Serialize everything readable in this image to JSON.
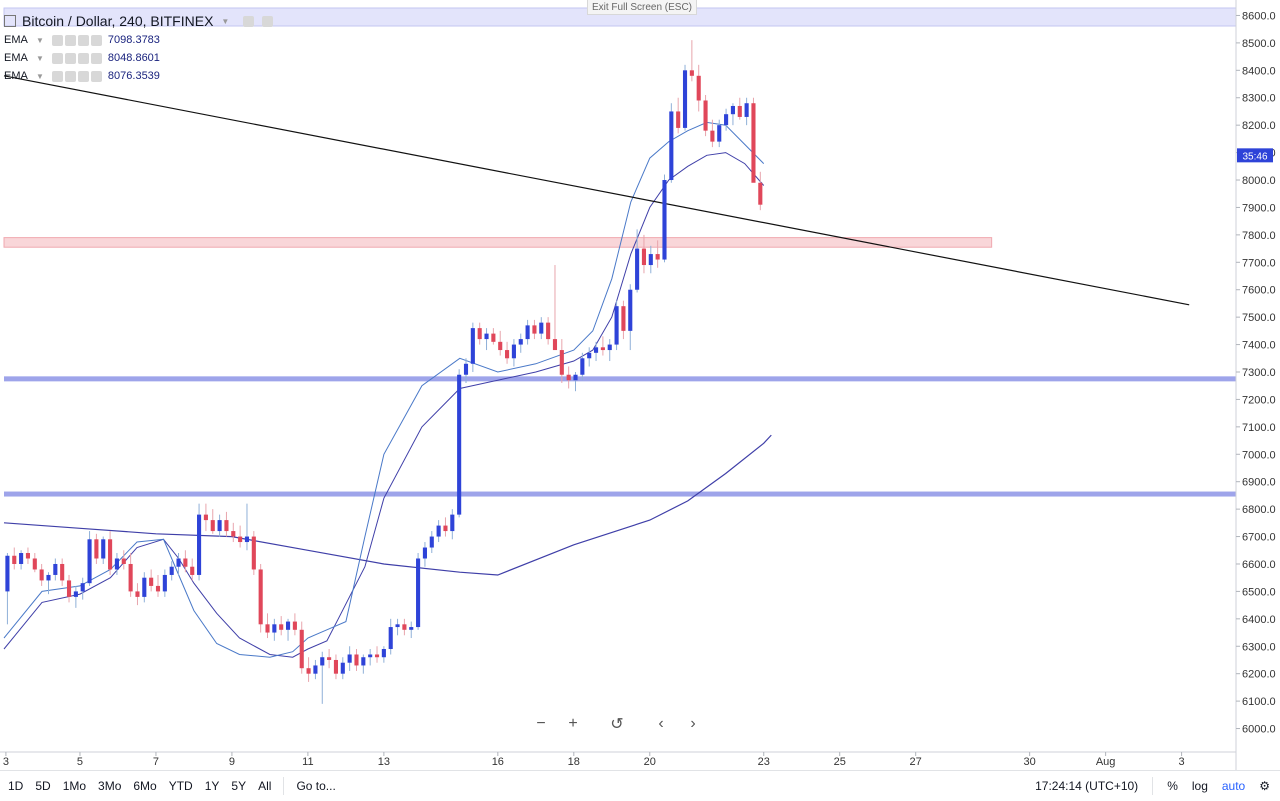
{
  "window": {
    "exit_fullscreen": "Exit Full Screen (ESC)"
  },
  "legend": {
    "title": "Bitcoin / Dollar, 240, BITFINEX",
    "indicators": [
      {
        "name": "EMA",
        "value": "7098.3783"
      },
      {
        "name": "EMA",
        "value": "8048.8601"
      },
      {
        "name": "EMA",
        "value": "8076.3539"
      }
    ]
  },
  "nav": {
    "zoom_out": "−",
    "zoom_in": "+",
    "reset": "↺",
    "scroll_left": "‹",
    "scroll_right": "›"
  },
  "bottom_bar": {
    "ranges": [
      "1D",
      "5D",
      "1Mo",
      "3Mo",
      "6Mo",
      "YTD",
      "1Y",
      "5Y",
      "All"
    ],
    "goto": "Go to...",
    "time": "17:24:14 (UTC+10)",
    "percent": "%",
    "log": "log",
    "auto": "auto"
  },
  "colors": {
    "up": "#2e43d8",
    "down": "#e0475a",
    "hline": "#9ea4ea",
    "zone": "#f9d6d9",
    "ema_fast": "#4a79c8",
    "ema_slow": "#3f3fa8",
    "trendline": "#111111",
    "badge": "#2e43d8"
  },
  "chart_data": {
    "type": "candlestick",
    "title": "Bitcoin / Dollar, 240, BITFINEX",
    "ylim": [
      5950,
      8650
    ],
    "y_ticks": [
      6000,
      6100,
      6200,
      6300,
      6400,
      6500,
      6600,
      6700,
      6800,
      6900,
      7000,
      7100,
      7200,
      7300,
      7400,
      7500,
      7600,
      7700,
      7800,
      7900,
      8000,
      8100,
      8200,
      8300,
      8400,
      8500,
      8600
    ],
    "x_ticks": [
      {
        "label": "3",
        "t": 0.5
      },
      {
        "label": "5",
        "t": 20
      },
      {
        "label": "7",
        "t": 40
      },
      {
        "label": "9",
        "t": 60
      },
      {
        "label": "11",
        "t": 80
      },
      {
        "label": "13",
        "t": 100
      },
      {
        "label": "16",
        "t": 130
      },
      {
        "label": "18",
        "t": 150
      },
      {
        "label": "20",
        "t": 170
      },
      {
        "label": "23",
        "t": 200
      },
      {
        "label": "25",
        "t": 220
      },
      {
        "label": "27",
        "t": 240
      },
      {
        "label": "30",
        "t": 270
      },
      {
        "label": "Aug",
        "t": 290
      },
      {
        "label": "3",
        "t": 310
      }
    ],
    "x_range": [
      0,
      312
    ],
    "current_price_badge": {
      "label": "35:46",
      "price": 8090
    },
    "horizontal_lines": [
      7275,
      6855
    ],
    "resistance_zone": {
      "from": 7755,
      "to": 7790,
      "t_end": 260
    },
    "trendline": [
      {
        "t": 0,
        "price": 8380
      },
      {
        "t": 312,
        "price": 7545
      }
    ],
    "candles": [
      [
        6500,
        6640,
        6380,
        6630
      ],
      [
        6630,
        6660,
        6580,
        6600
      ],
      [
        6600,
        6650,
        6580,
        6640
      ],
      [
        6640,
        6660,
        6600,
        6620
      ],
      [
        6620,
        6640,
        6570,
        6580
      ],
      [
        6580,
        6600,
        6520,
        6540
      ],
      [
        6540,
        6570,
        6490,
        6560
      ],
      [
        6560,
        6620,
        6540,
        6600
      ],
      [
        6600,
        6620,
        6520,
        6540
      ],
      [
        6540,
        6560,
        6460,
        6480
      ],
      [
        6480,
        6520,
        6440,
        6500
      ],
      [
        6500,
        6550,
        6470,
        6530
      ],
      [
        6530,
        6720,
        6520,
        6690
      ],
      [
        6690,
        6710,
        6600,
        6620
      ],
      [
        6620,
        6700,
        6600,
        6690
      ],
      [
        6690,
        6720,
        6560,
        6580
      ],
      [
        6580,
        6640,
        6560,
        6620
      ],
      [
        6620,
        6650,
        6580,
        6600
      ],
      [
        6600,
        6640,
        6480,
        6500
      ],
      [
        6500,
        6530,
        6450,
        6480
      ],
      [
        6480,
        6570,
        6460,
        6550
      ],
      [
        6550,
        6580,
        6500,
        6520
      ],
      [
        6520,
        6560,
        6480,
        6500
      ],
      [
        6500,
        6580,
        6480,
        6560
      ],
      [
        6560,
        6610,
        6540,
        6590
      ],
      [
        6590,
        6640,
        6560,
        6620
      ],
      [
        6620,
        6650,
        6570,
        6590
      ],
      [
        6590,
        6620,
        6540,
        6560
      ],
      [
        6560,
        6820,
        6540,
        6780
      ],
      [
        6780,
        6820,
        6720,
        6760
      ],
      [
        6760,
        6800,
        6710,
        6720
      ],
      [
        6720,
        6780,
        6700,
        6760
      ],
      [
        6760,
        6790,
        6700,
        6720
      ],
      [
        6720,
        6750,
        6680,
        6700
      ],
      [
        6700,
        6740,
        6660,
        6680
      ],
      [
        6680,
        6820,
        6650,
        6700
      ],
      [
        6700,
        6720,
        6560,
        6580
      ],
      [
        6580,
        6600,
        6350,
        6380
      ],
      [
        6380,
        6420,
        6330,
        6350
      ],
      [
        6350,
        6400,
        6320,
        6380
      ],
      [
        6380,
        6410,
        6340,
        6360
      ],
      [
        6360,
        6400,
        6320,
        6390
      ],
      [
        6390,
        6420,
        6340,
        6360
      ],
      [
        6360,
        6390,
        6200,
        6220
      ],
      [
        6220,
        6260,
        6170,
        6200
      ],
      [
        6200,
        6250,
        6180,
        6230
      ],
      [
        6230,
        6280,
        6090,
        6260
      ],
      [
        6260,
        6290,
        6220,
        6250
      ],
      [
        6250,
        6270,
        6180,
        6200
      ],
      [
        6200,
        6260,
        6180,
        6240
      ],
      [
        6240,
        6300,
        6210,
        6270
      ],
      [
        6270,
        6290,
        6210,
        6230
      ],
      [
        6230,
        6270,
        6200,
        6260
      ],
      [
        6260,
        6290,
        6230,
        6270
      ],
      [
        6270,
        6300,
        6240,
        6260
      ],
      [
        6260,
        6300,
        6240,
        6290
      ],
      [
        6290,
        6400,
        6270,
        6370
      ],
      [
        6370,
        6400,
        6340,
        6380
      ],
      [
        6380,
        6400,
        6340,
        6360
      ],
      [
        6360,
        6390,
        6330,
        6370
      ],
      [
        6370,
        6640,
        6360,
        6620
      ],
      [
        6620,
        6680,
        6590,
        6660
      ],
      [
        6660,
        6720,
        6640,
        6700
      ],
      [
        6700,
        6760,
        6680,
        6740
      ],
      [
        6740,
        6770,
        6700,
        6720
      ],
      [
        6720,
        6800,
        6690,
        6780
      ],
      [
        6780,
        7310,
        6770,
        7290
      ],
      [
        7290,
        7350,
        7260,
        7330
      ],
      [
        7330,
        7480,
        7300,
        7460
      ],
      [
        7460,
        7480,
        7400,
        7420
      ],
      [
        7420,
        7460,
        7380,
        7440
      ],
      [
        7440,
        7460,
        7400,
        7410
      ],
      [
        7410,
        7450,
        7360,
        7380
      ],
      [
        7380,
        7410,
        7330,
        7350
      ],
      [
        7350,
        7420,
        7320,
        7400
      ],
      [
        7400,
        7440,
        7370,
        7420
      ],
      [
        7420,
        7490,
        7400,
        7470
      ],
      [
        7470,
        7490,
        7420,
        7440
      ],
      [
        7440,
        7500,
        7420,
        7480
      ],
      [
        7480,
        7500,
        7400,
        7420
      ],
      [
        7420,
        7690,
        7400,
        7380
      ],
      [
        7380,
        7420,
        7260,
        7290
      ],
      [
        7290,
        7320,
        7240,
        7270
      ],
      [
        7270,
        7300,
        7230,
        7290
      ],
      [
        7290,
        7370,
        7270,
        7350
      ],
      [
        7350,
        7390,
        7320,
        7370
      ],
      [
        7370,
        7410,
        7340,
        7390
      ],
      [
        7390,
        7430,
        7360,
        7380
      ],
      [
        7380,
        7420,
        7340,
        7400
      ],
      [
        7400,
        7560,
        7380,
        7540
      ],
      [
        7540,
        7560,
        7420,
        7450
      ],
      [
        7450,
        7620,
        7380,
        7600
      ],
      [
        7600,
        7820,
        7590,
        7750
      ],
      [
        7750,
        7800,
        7660,
        7690
      ],
      [
        7690,
        7760,
        7660,
        7730
      ],
      [
        7730,
        7780,
        7680,
        7710
      ],
      [
        7710,
        8020,
        7700,
        8000
      ],
      [
        8000,
        8280,
        7990,
        8250
      ],
      [
        8250,
        8300,
        8170,
        8190
      ],
      [
        8190,
        8420,
        8180,
        8400
      ],
      [
        8400,
        8510,
        8360,
        8380
      ],
      [
        8380,
        8420,
        8250,
        8290
      ],
      [
        8290,
        8310,
        8160,
        8180
      ],
      [
        8180,
        8220,
        8120,
        8140
      ],
      [
        8140,
        8220,
        8120,
        8200
      ],
      [
        8200,
        8260,
        8180,
        8240
      ],
      [
        8240,
        8280,
        8200,
        8270
      ],
      [
        8270,
        8300,
        8220,
        8230
      ],
      [
        8230,
        8300,
        8200,
        8280
      ],
      [
        8280,
        8300,
        8000,
        7990
      ],
      [
        7990,
        8030,
        7890,
        7910
      ]
    ],
    "ema_fast": [
      [
        0,
        6330
      ],
      [
        10,
        6500
      ],
      [
        20,
        6520
      ],
      [
        28,
        6580
      ],
      [
        35,
        6680
      ],
      [
        42,
        6690
      ],
      [
        46,
        6560
      ],
      [
        50,
        6430
      ],
      [
        56,
        6310
      ],
      [
        62,
        6270
      ],
      [
        70,
        6260
      ],
      [
        76,
        6280
      ],
      [
        80,
        6330
      ],
      [
        85,
        6360
      ],
      [
        90,
        6390
      ],
      [
        95,
        6700
      ],
      [
        100,
        7000
      ],
      [
        110,
        7250
      ],
      [
        120,
        7350
      ],
      [
        130,
        7300
      ],
      [
        140,
        7330
      ],
      [
        150,
        7380
      ],
      [
        155,
        7450
      ],
      [
        160,
        7640
      ],
      [
        165,
        7920
      ],
      [
        170,
        8080
      ],
      [
        175,
        8140
      ],
      [
        180,
        8180
      ],
      [
        185,
        8210
      ],
      [
        190,
        8200
      ],
      [
        195,
        8130
      ],
      [
        200,
        8060
      ]
    ],
    "ema_slow": [
      [
        0,
        6290
      ],
      [
        10,
        6460
      ],
      [
        20,
        6490
      ],
      [
        28,
        6550
      ],
      [
        35,
        6660
      ],
      [
        42,
        6690
      ],
      [
        46,
        6620
      ],
      [
        50,
        6530
      ],
      [
        56,
        6420
      ],
      [
        62,
        6330
      ],
      [
        70,
        6270
      ],
      [
        76,
        6260
      ],
      [
        80,
        6290
      ],
      [
        85,
        6320
      ],
      [
        88,
        6400
      ],
      [
        95,
        6590
      ],
      [
        100,
        6840
      ],
      [
        110,
        7100
      ],
      [
        120,
        7240
      ],
      [
        130,
        7270
      ],
      [
        140,
        7300
      ],
      [
        150,
        7340
      ],
      [
        155,
        7380
      ],
      [
        160,
        7500
      ],
      [
        165,
        7730
      ],
      [
        170,
        7900
      ],
      [
        175,
        8000
      ],
      [
        180,
        8050
      ],
      [
        185,
        8090
      ],
      [
        190,
        8100
      ],
      [
        195,
        8060
      ],
      [
        200,
        7980
      ]
    ],
    "ema_long": [
      [
        0,
        6750
      ],
      [
        20,
        6730
      ],
      [
        40,
        6710
      ],
      [
        60,
        6700
      ],
      [
        80,
        6650
      ],
      [
        100,
        6600
      ],
      [
        120,
        6570
      ],
      [
        130,
        6560
      ],
      [
        150,
        6670
      ],
      [
        170,
        6760
      ],
      [
        180,
        6830
      ],
      [
        190,
        6930
      ],
      [
        200,
        7040
      ],
      [
        202,
        7070
      ]
    ]
  }
}
